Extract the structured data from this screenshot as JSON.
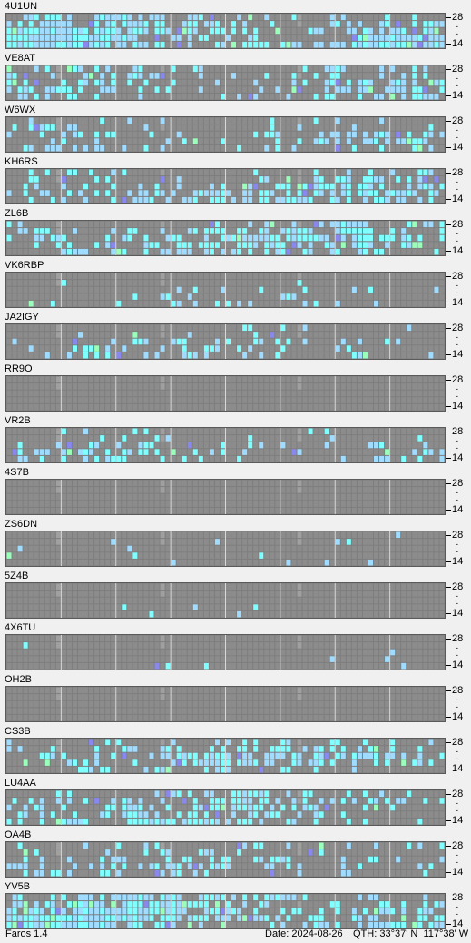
{
  "app": {
    "name": "Faros 1.4"
  },
  "status": {
    "date_label": "Date:",
    "date": "2024-08-26",
    "qth_label": "QTH:",
    "lat": "33°37' N",
    "lon": "117°38' W"
  },
  "axis": {
    "top": "28",
    "mid": "-",
    "bottom": "14"
  },
  "colors": {
    "grid_bg": "#7e7e7e",
    "cell_empty": "#8c8c8c",
    "cell_cyan": "#7fffff",
    "cell_lightblue": "#9fdcff",
    "cell_blue": "#8888ee",
    "cell_green": "#99ffbb",
    "cell_marker": "#a0a0a0"
  },
  "beacons": [
    {
      "call": "4U1UN",
      "activity": 0.85,
      "bands": [
        0.5,
        0.6,
        0.7,
        0.9,
        0.95
      ]
    },
    {
      "call": "VE8AT",
      "activity": 0.45,
      "bands": [
        0.2,
        0.35,
        0.55,
        0.5,
        0.4
      ]
    },
    {
      "call": "W6WX",
      "activity": 0.25,
      "bands": [
        0.1,
        0.2,
        0.35,
        0.3,
        0.25
      ]
    },
    {
      "call": "KH6RS",
      "activity": 0.5,
      "bands": [
        0.3,
        0.45,
        0.55,
        0.6,
        0.55
      ]
    },
    {
      "call": "ZL6B",
      "activity": 0.55,
      "bands": [
        0.35,
        0.5,
        0.6,
        0.55,
        0.45
      ]
    },
    {
      "call": "VK6RBP",
      "activity": 0.2,
      "bands": [
        0.02,
        0.05,
        0.2,
        0.25,
        0.2
      ]
    },
    {
      "call": "JA2IGY",
      "activity": 0.3,
      "bands": [
        0.1,
        0.15,
        0.2,
        0.3,
        0.35
      ]
    },
    {
      "call": "RR9O",
      "activity": 0.02,
      "bands": [
        0.02,
        0.01,
        0.0,
        0.0,
        0.0
      ]
    },
    {
      "call": "VR2B",
      "activity": 0.3,
      "bands": [
        0.1,
        0.15,
        0.25,
        0.35,
        0.3
      ]
    },
    {
      "call": "4S7B",
      "activity": 0.0,
      "bands": [
        0,
        0,
        0,
        0,
        0
      ]
    },
    {
      "call": "ZS6DN",
      "activity": 0.08,
      "bands": [
        0.02,
        0.05,
        0.08,
        0.1,
        0.05
      ]
    },
    {
      "call": "5Z4B",
      "activity": 0.02,
      "bands": [
        0,
        0,
        0,
        0.02,
        0.01
      ]
    },
    {
      "call": "4X6TU",
      "activity": 0.05,
      "bands": [
        0,
        0.02,
        0.04,
        0.05,
        0.02
      ]
    },
    {
      "call": "OH2B",
      "activity": 0.02,
      "bands": [
        0,
        0,
        0,
        0,
        0.02
      ]
    },
    {
      "call": "CS3B",
      "activity": 0.4,
      "bands": [
        0.2,
        0.3,
        0.45,
        0.5,
        0.35
      ]
    },
    {
      "call": "LU4AA",
      "activity": 0.55,
      "bands": [
        0.35,
        0.5,
        0.55,
        0.5,
        0.45
      ]
    },
    {
      "call": "OA4B",
      "activity": 0.35,
      "bands": [
        0.15,
        0.25,
        0.4,
        0.45,
        0.3
      ]
    },
    {
      "call": "YV5B",
      "activity": 0.75,
      "bands": [
        0.55,
        0.65,
        0.75,
        0.8,
        0.75
      ]
    }
  ]
}
